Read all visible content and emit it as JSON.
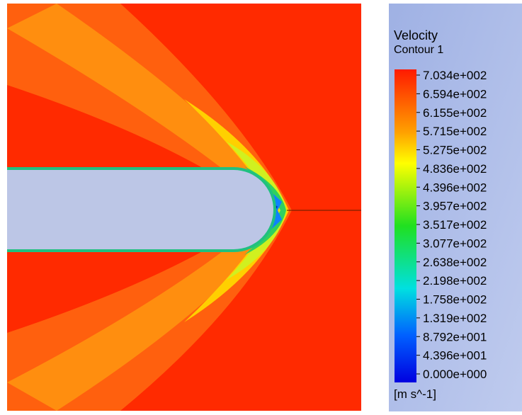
{
  "legend": {
    "title": "Velocity",
    "subtitle": "Contour 1",
    "levels": [
      "7.034e+002",
      "6.594e+002",
      "6.155e+002",
      "5.715e+002",
      "5.275e+002",
      "4.836e+002",
      "4.396e+002",
      "3.957e+002",
      "3.517e+002",
      "3.077e+002",
      "2.638e+002",
      "2.198e+002",
      "1.758e+002",
      "1.319e+002",
      "8.792e+001",
      "4.396e+001",
      "0.000e+000"
    ],
    "unit": "[m s^-1]"
  }
}
